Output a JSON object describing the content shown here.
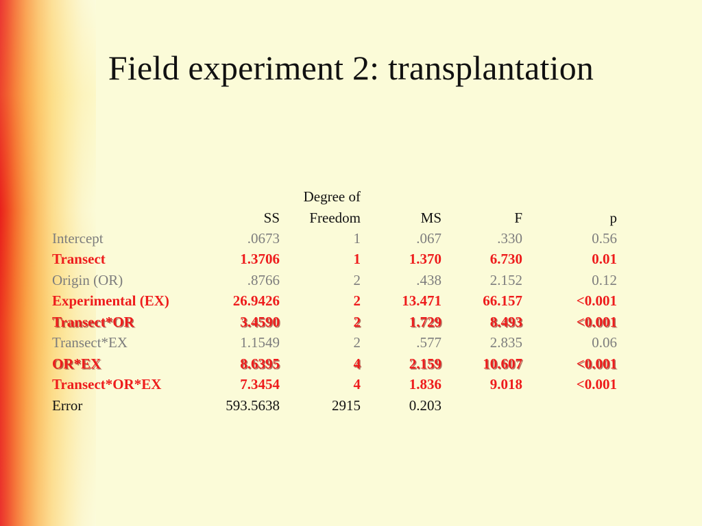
{
  "slide": {
    "title": "Field experiment 2: transplantation"
  },
  "table": {
    "headers": {
      "label": "",
      "ss": "SS",
      "df_line1": "Degree of",
      "df_line2": "Freedom",
      "ms": "MS",
      "f": "F",
      "p": "p"
    },
    "rows": [
      {
        "label": "Intercept",
        "ss": ".0673",
        "df": "1",
        "ms": ".067",
        "f": ".330",
        "p": "0.56"
      },
      {
        "label": "Transect",
        "ss": "1.3706",
        "df": "1",
        "ms": "1.370",
        "f": "6.730",
        "p": "0.01"
      },
      {
        "label": "Origin (OR)",
        "ss": ".8766",
        "df": "2",
        "ms": ".438",
        "f": "2.152",
        "p": "0.12"
      },
      {
        "label": "Experimental (EX)",
        "ss": "26.9426",
        "df": "2",
        "ms": "13.471",
        "f": "66.157",
        "p": "<0.001"
      },
      {
        "label": "Transect*OR",
        "ss": "3.4590",
        "df": "2",
        "ms": "1.729",
        "f": "8.493",
        "p": "<0.001"
      },
      {
        "label": "Transect*EX",
        "ss": "1.1549",
        "df": "2",
        "ms": ".577",
        "f": "2.835",
        "p": "0.06"
      },
      {
        "label": "OR*EX",
        "ss": "8.6395",
        "df": "4",
        "ms": "2.159",
        "f": "10.607",
        "p": "<0.001"
      },
      {
        "label": "Transect*OR*EX",
        "ss": "7.3454",
        "df": "4",
        "ms": "1.836",
        "f": "9.018",
        "p": "<0.001"
      },
      {
        "label": "Error",
        "ss": "593.5638",
        "df": "2915",
        "ms": "0.203",
        "f": "",
        "p": ""
      }
    ]
  },
  "colors": {
    "significant": "#ee1c1c",
    "not_significant": "#7d7d7d",
    "error_row": "#111111",
    "background": "#fbfbd8",
    "stripe_accent": "#e8201c"
  }
}
